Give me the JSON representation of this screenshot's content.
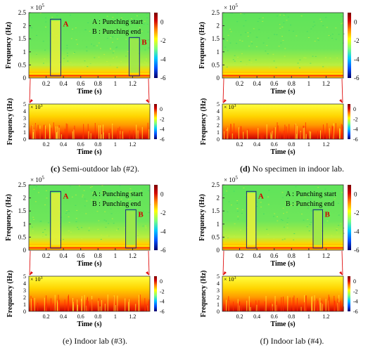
{
  "colormap": [
    "#00006a",
    "#0050ff",
    "#00c8ff",
    "#7dff7d",
    "#ffff00",
    "#ff7a00",
    "#d00000",
    "#7a0000"
  ],
  "axis_common": {
    "ylabel": "Frequency (Hz)",
    "xlabel": "Time (s)",
    "top_exponent": "× 10^5",
    "bottom_exponent": "× 10^3",
    "top_xticks": [
      "0.2",
      "0.4",
      "0.6",
      "0.8",
      "1",
      "1.2"
    ],
    "top_yticks": [
      "0",
      "0.5",
      "1",
      "1.5",
      "2",
      "2.5"
    ],
    "bottom_xticks": [
      "0.2",
      "0.4",
      "0.6",
      "0.8",
      "1",
      "1.2"
    ],
    "bottom_yticks": [
      "0",
      "1",
      "2",
      "3",
      "4",
      "5"
    ],
    "top_cbar_ticks": [
      "0",
      "-2",
      "-4",
      "-6"
    ],
    "bottom_cbar_ticks": [
      "0",
      "-2",
      "-4",
      "-6"
    ]
  },
  "legend_text": {
    "a": "A : Punching start",
    "b": "B : Punching end"
  },
  "box_labels": {
    "a": "A",
    "b": "B"
  },
  "captions": [
    {
      "prefix": "(c)",
      "text": " Semi-outdoor lab (#2).",
      "bold_prefix": true
    },
    {
      "prefix": "(d)",
      "text": " No specimen in indoor lab.",
      "bold_prefix": true
    },
    {
      "prefix": "(e)",
      "text": " Indoor lab (#3).",
      "bold_prefix": false
    },
    {
      "prefix": "(f)",
      "text": " Indoor lab (#4).",
      "bold_prefix": false
    }
  ],
  "chart_data": [
    {
      "type": "heatmap",
      "panel": "c-top",
      "title": "",
      "xlabel": "Time (s)",
      "ylabel": "Frequency (Hz)",
      "xlim": [
        0,
        1.4
      ],
      "ylim": [
        0,
        250000
      ],
      "colorbar_range_db": [
        -6,
        1
      ],
      "annotations": [
        {
          "label": "A",
          "t_start": 0.25,
          "t_end": 0.37
        },
        {
          "label": "B",
          "t_start": 1.16,
          "t_end": 1.28
        }
      ],
      "legend": [
        "A : Punching start",
        "B : Punching end"
      ]
    },
    {
      "type": "heatmap",
      "panel": "c-bottom",
      "title": "",
      "xlabel": "Time (s)",
      "ylabel": "Frequency (Hz)",
      "xlim": [
        0,
        1.4
      ],
      "ylim": [
        0,
        5000
      ],
      "colorbar_range_db": [
        -6,
        1
      ],
      "zoom_of": "c-top"
    },
    {
      "type": "heatmap",
      "panel": "d-top",
      "title": "",
      "xlabel": "Time (s)",
      "ylabel": "Frequency (Hz)",
      "xlim": [
        0,
        1.4
      ],
      "ylim": [
        0,
        250000
      ],
      "colorbar_range_db": [
        -6,
        1
      ]
    },
    {
      "type": "heatmap",
      "panel": "d-bottom",
      "title": "",
      "xlabel": "Time (s)",
      "ylabel": "Frequency (Hz)",
      "xlim": [
        0,
        1.4
      ],
      "ylim": [
        0,
        5000
      ],
      "colorbar_range_db": [
        -6,
        1
      ],
      "zoom_of": "d-top"
    },
    {
      "type": "heatmap",
      "panel": "e-top",
      "title": "",
      "xlabel": "Time (s)",
      "ylabel": "Frequency (Hz)",
      "xlim": [
        0,
        1.4
      ],
      "ylim": [
        0,
        250000
      ],
      "colorbar_range_db": [
        -6,
        1
      ],
      "annotations": [
        {
          "label": "A",
          "t_start": 0.25,
          "t_end": 0.37
        },
        {
          "label": "B",
          "t_start": 1.12,
          "t_end": 1.24
        }
      ],
      "legend": [
        "A : Punching start",
        "B : Punching end"
      ]
    },
    {
      "type": "heatmap",
      "panel": "e-bottom",
      "title": "",
      "xlabel": "Time (s)",
      "ylabel": "Frequency (Hz)",
      "xlim": [
        0,
        1.4
      ],
      "ylim": [
        0,
        5000
      ],
      "colorbar_range_db": [
        -6,
        1
      ],
      "zoom_of": "e-top"
    },
    {
      "type": "heatmap",
      "panel": "f-top",
      "title": "",
      "xlabel": "Time (s)",
      "ylabel": "Frequency (Hz)",
      "xlim": [
        0,
        1.4
      ],
      "ylim": [
        0,
        250000
      ],
      "colorbar_range_db": [
        -6,
        1
      ],
      "annotations": [
        {
          "label": "A",
          "t_start": 0.28,
          "t_end": 0.39
        },
        {
          "label": "B",
          "t_start": 1.05,
          "t_end": 1.16
        }
      ],
      "legend": [
        "A : Punching start",
        "B : Punching end"
      ]
    },
    {
      "type": "heatmap",
      "panel": "f-bottom",
      "title": "",
      "xlabel": "Time (s)",
      "ylabel": "Frequency (Hz)",
      "xlim": [
        0,
        1.4
      ],
      "ylim": [
        0,
        5000
      ],
      "colorbar_range_db": [
        -6,
        1
      ],
      "zoom_of": "f-top"
    }
  ]
}
